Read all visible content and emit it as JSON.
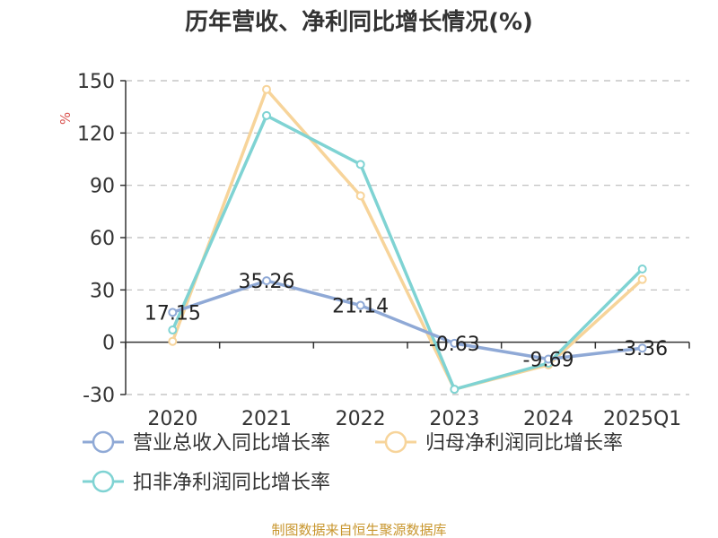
{
  "colors": {
    "revenue": "#8fa9d6",
    "net_profit": "#f7d49a",
    "deducted_profit": "#7fd3d3",
    "grid": "#bbbbbb",
    "axis": "#333333",
    "source": "#c8962e",
    "unit": "#d9534f"
  },
  "chart_data": {
    "type": "line",
    "title": "历年营收、净利同比增长情况(%)",
    "ylabel": "%",
    "categories": [
      "2020",
      "2021",
      "2022",
      "2023",
      "2024",
      "2025Q1"
    ],
    "ylim": [
      -30,
      150
    ],
    "yticks": [
      -30,
      0,
      30,
      60,
      90,
      120,
      150
    ],
    "grid": true,
    "legend_position": "bottom",
    "series": [
      {
        "name": "营业总收入同比增长率",
        "color_key": "revenue",
        "values": [
          17.15,
          35.26,
          21.14,
          -0.63,
          -9.69,
          -3.36
        ],
        "labels": [
          "17.15",
          "35.26",
          "21.14",
          "-0.63",
          "-9.69",
          "-3.36"
        ]
      },
      {
        "name": "归母净利润同比增长率",
        "color_key": "net_profit",
        "values": [
          0.5,
          145.0,
          84.0,
          -27.0,
          -13.0,
          36.0
        ]
      },
      {
        "name": "扣非净利润同比增长率",
        "color_key": "deducted_profit",
        "values": [
          7.0,
          130.0,
          102.0,
          -27.0,
          -12.0,
          42.0
        ]
      }
    ],
    "source": "制图数据来自恒生聚源数据库"
  }
}
